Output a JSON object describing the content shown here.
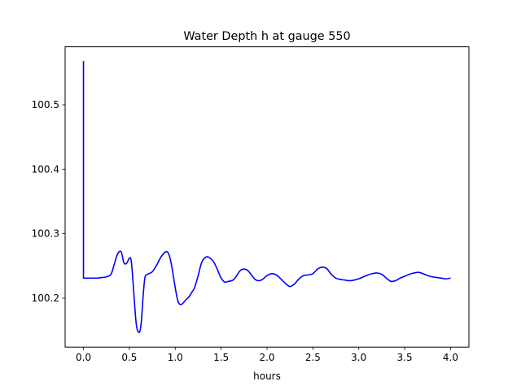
{
  "chart_data": {
    "type": "line",
    "title": "Water Depth h at gauge 550",
    "xlabel": "hours",
    "ylabel": "",
    "xlim": [
      -0.2,
      4.2
    ],
    "ylim": [
      100.124,
      100.59
    ],
    "xticks": [
      0.0,
      0.5,
      1.0,
      1.5,
      2.0,
      2.5,
      3.0,
      3.5,
      4.0
    ],
    "xtick_labels": [
      "0.0",
      "0.5",
      "1.0",
      "1.5",
      "2.0",
      "2.5",
      "3.0",
      "3.5",
      "4.0"
    ],
    "yticks": [
      100.2,
      100.3,
      100.4,
      100.5
    ],
    "ytick_labels": [
      "100.2",
      "100.3",
      "100.4",
      "100.5"
    ],
    "grid": false,
    "legend": "none",
    "series": [
      {
        "color": "#0000ff",
        "x": [
          0.0,
          0.0,
          0.05,
          0.1,
          0.15,
          0.2,
          0.25,
          0.3,
          0.33,
          0.37,
          0.41,
          0.44,
          0.47,
          0.5,
          0.52,
          0.54,
          0.56,
          0.58,
          0.61,
          0.63,
          0.65,
          0.67,
          0.7,
          0.75,
          0.8,
          0.85,
          0.9,
          0.93,
          0.96,
          1.0,
          1.03,
          1.06,
          1.09,
          1.12,
          1.15,
          1.18,
          1.21,
          1.25,
          1.29,
          1.34,
          1.38,
          1.42,
          1.46,
          1.5,
          1.54,
          1.58,
          1.63,
          1.67,
          1.71,
          1.75,
          1.79,
          1.83,
          1.87,
          1.91,
          1.95,
          2.0,
          2.05,
          2.1,
          2.15,
          2.2,
          2.25,
          2.3,
          2.35,
          2.4,
          2.45,
          2.5,
          2.55,
          2.6,
          2.65,
          2.7,
          2.75,
          2.8,
          2.85,
          2.9,
          2.95,
          3.0,
          3.05,
          3.1,
          3.15,
          3.2,
          3.25,
          3.3,
          3.35,
          3.4,
          3.45,
          3.5,
          3.55,
          3.6,
          3.65,
          3.7,
          3.75,
          3.8,
          3.85,
          3.9,
          3.95,
          4.0
        ],
        "y": [
          100.568,
          100.231,
          100.231,
          100.231,
          100.231,
          100.232,
          100.233,
          100.237,
          100.25,
          100.268,
          100.272,
          100.255,
          100.254,
          100.262,
          100.258,
          100.225,
          100.185,
          100.155,
          100.147,
          100.163,
          100.203,
          100.232,
          100.237,
          100.241,
          100.252,
          100.265,
          100.272,
          100.268,
          100.251,
          100.216,
          100.195,
          100.19,
          100.193,
          100.198,
          100.202,
          100.209,
          100.216,
          100.235,
          100.256,
          100.264,
          100.262,
          100.256,
          100.244,
          100.231,
          100.225,
          100.226,
          100.228,
          100.235,
          100.243,
          100.245,
          100.243,
          100.236,
          100.229,
          100.227,
          100.229,
          100.235,
          100.238,
          100.236,
          100.23,
          100.223,
          100.218,
          100.222,
          100.23,
          100.235,
          100.236,
          100.238,
          100.245,
          100.248,
          100.246,
          100.237,
          100.231,
          100.229,
          100.228,
          100.227,
          100.228,
          100.23,
          100.233,
          100.236,
          100.238,
          100.239,
          100.237,
          100.231,
          100.226,
          100.227,
          100.231,
          100.234,
          100.237,
          100.239,
          100.24,
          100.238,
          100.235,
          100.233,
          100.232,
          100.231,
          100.23,
          100.231
        ]
      }
    ]
  }
}
